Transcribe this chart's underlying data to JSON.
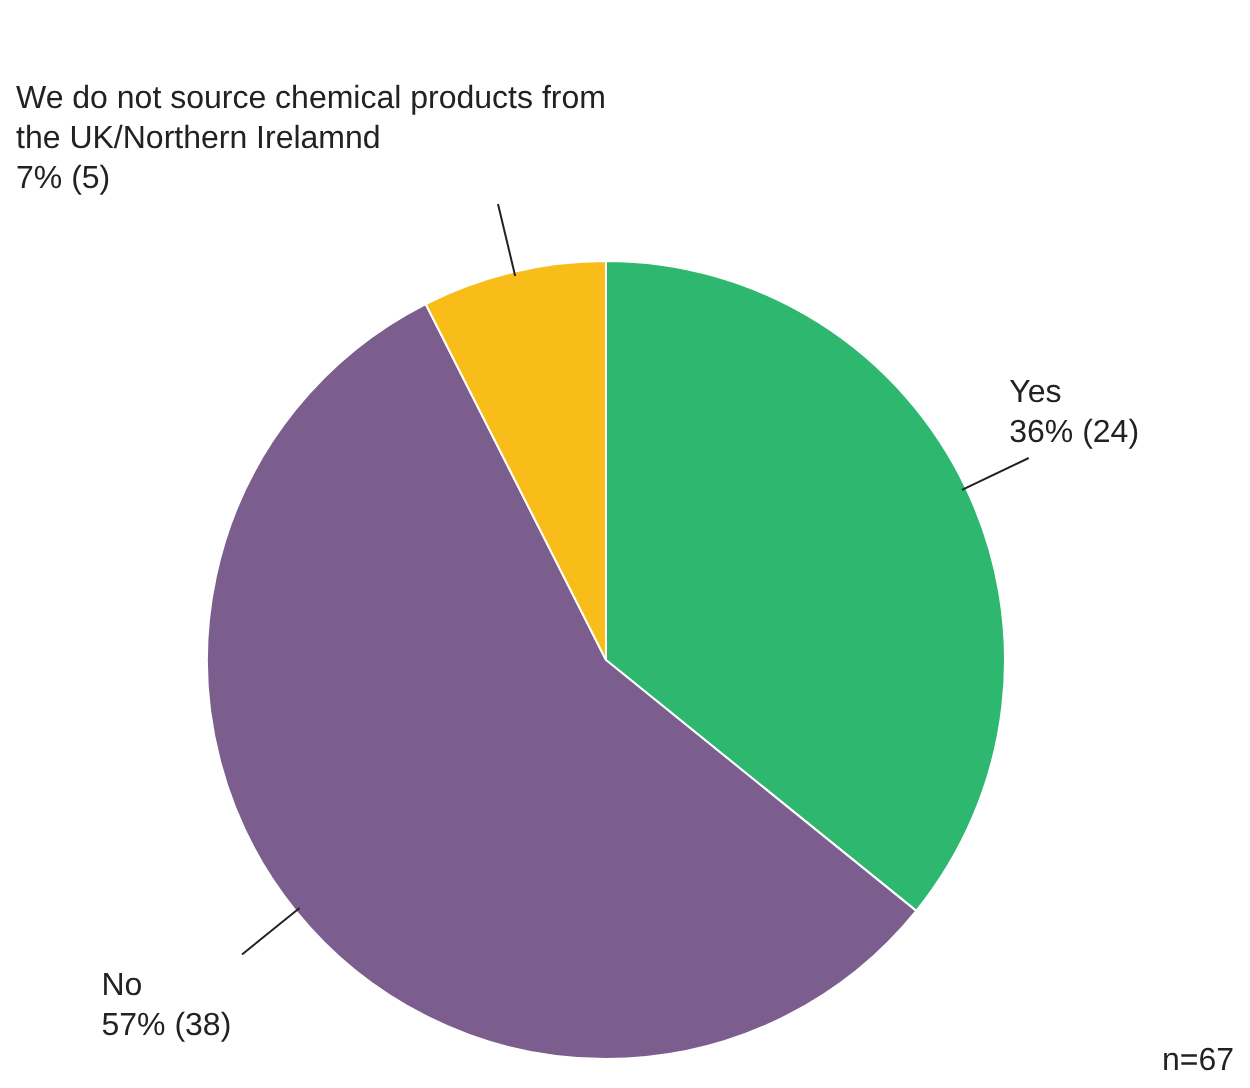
{
  "chart_data": {
    "type": "pie",
    "categories": [
      "Yes",
      "No",
      "We do not source chemical products from the UK/Northern Irelamnd"
    ],
    "values": [
      24,
      38,
      5
    ],
    "value_labels": [
      "36% (24)",
      "57% (38)",
      "7% (5)"
    ],
    "colors": [
      "#2eb76f",
      "#7b5e8e",
      "#f8bd19"
    ],
    "legend": false,
    "annotations": [
      "n=67"
    ]
  }
}
